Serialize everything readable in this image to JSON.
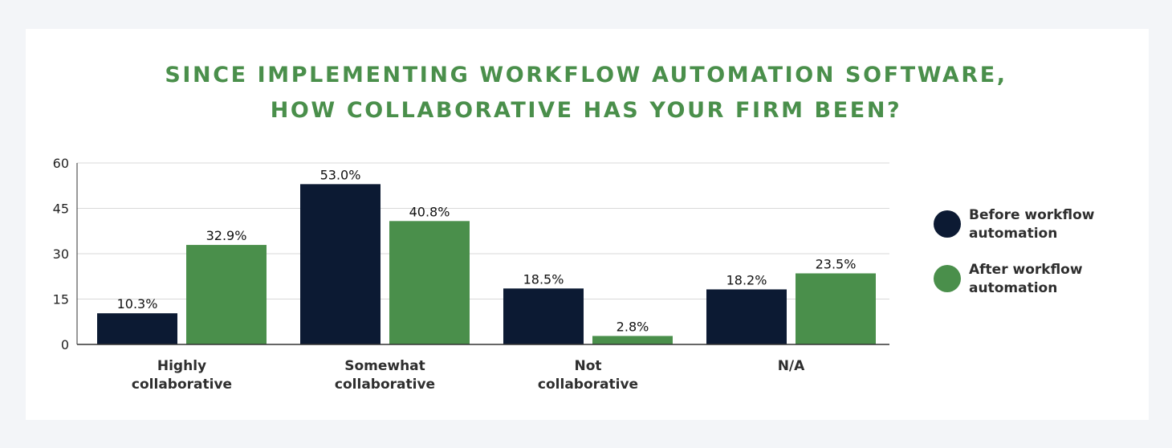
{
  "title_lines": [
    "SINCE IMPLEMENTING WORKFLOW AUTOMATION SOFTWARE,",
    "HOW COLLABORATIVE HAS YOUR FIRM BEEN?"
  ],
  "colors": {
    "before": "#0c1a33",
    "after": "#4a8f4b",
    "title": "#4a8f4b"
  },
  "chart_data": {
    "type": "bar",
    "title": "SINCE IMPLEMENTING WORKFLOW AUTOMATION SOFTWARE, HOW COLLABORATIVE HAS YOUR FIRM BEEN?",
    "categories": [
      [
        "Highly",
        "collaborative"
      ],
      [
        "Somewhat",
        "collaborative"
      ],
      [
        "Not",
        "collaborative"
      ],
      [
        "N/A"
      ]
    ],
    "series": [
      {
        "name": "Before workflow automation",
        "legend_lines": [
          "Before workflow",
          "automation"
        ],
        "values": [
          10.3,
          53.0,
          18.5,
          18.2
        ],
        "labels": [
          "10.3%",
          "53.0%",
          "18.5%",
          "18.2%"
        ]
      },
      {
        "name": "After workflow automation",
        "legend_lines": [
          "After workflow",
          "automation"
        ],
        "values": [
          32.9,
          40.8,
          2.8,
          23.5
        ],
        "labels": [
          "32.9%",
          "40.8%",
          "2.8%",
          "23.5%"
        ]
      }
    ],
    "ylim": [
      0,
      60
    ],
    "yticks": [
      0,
      15,
      30,
      45,
      60
    ],
    "grid": true,
    "legend": "right",
    "xlabel": "",
    "ylabel": ""
  }
}
